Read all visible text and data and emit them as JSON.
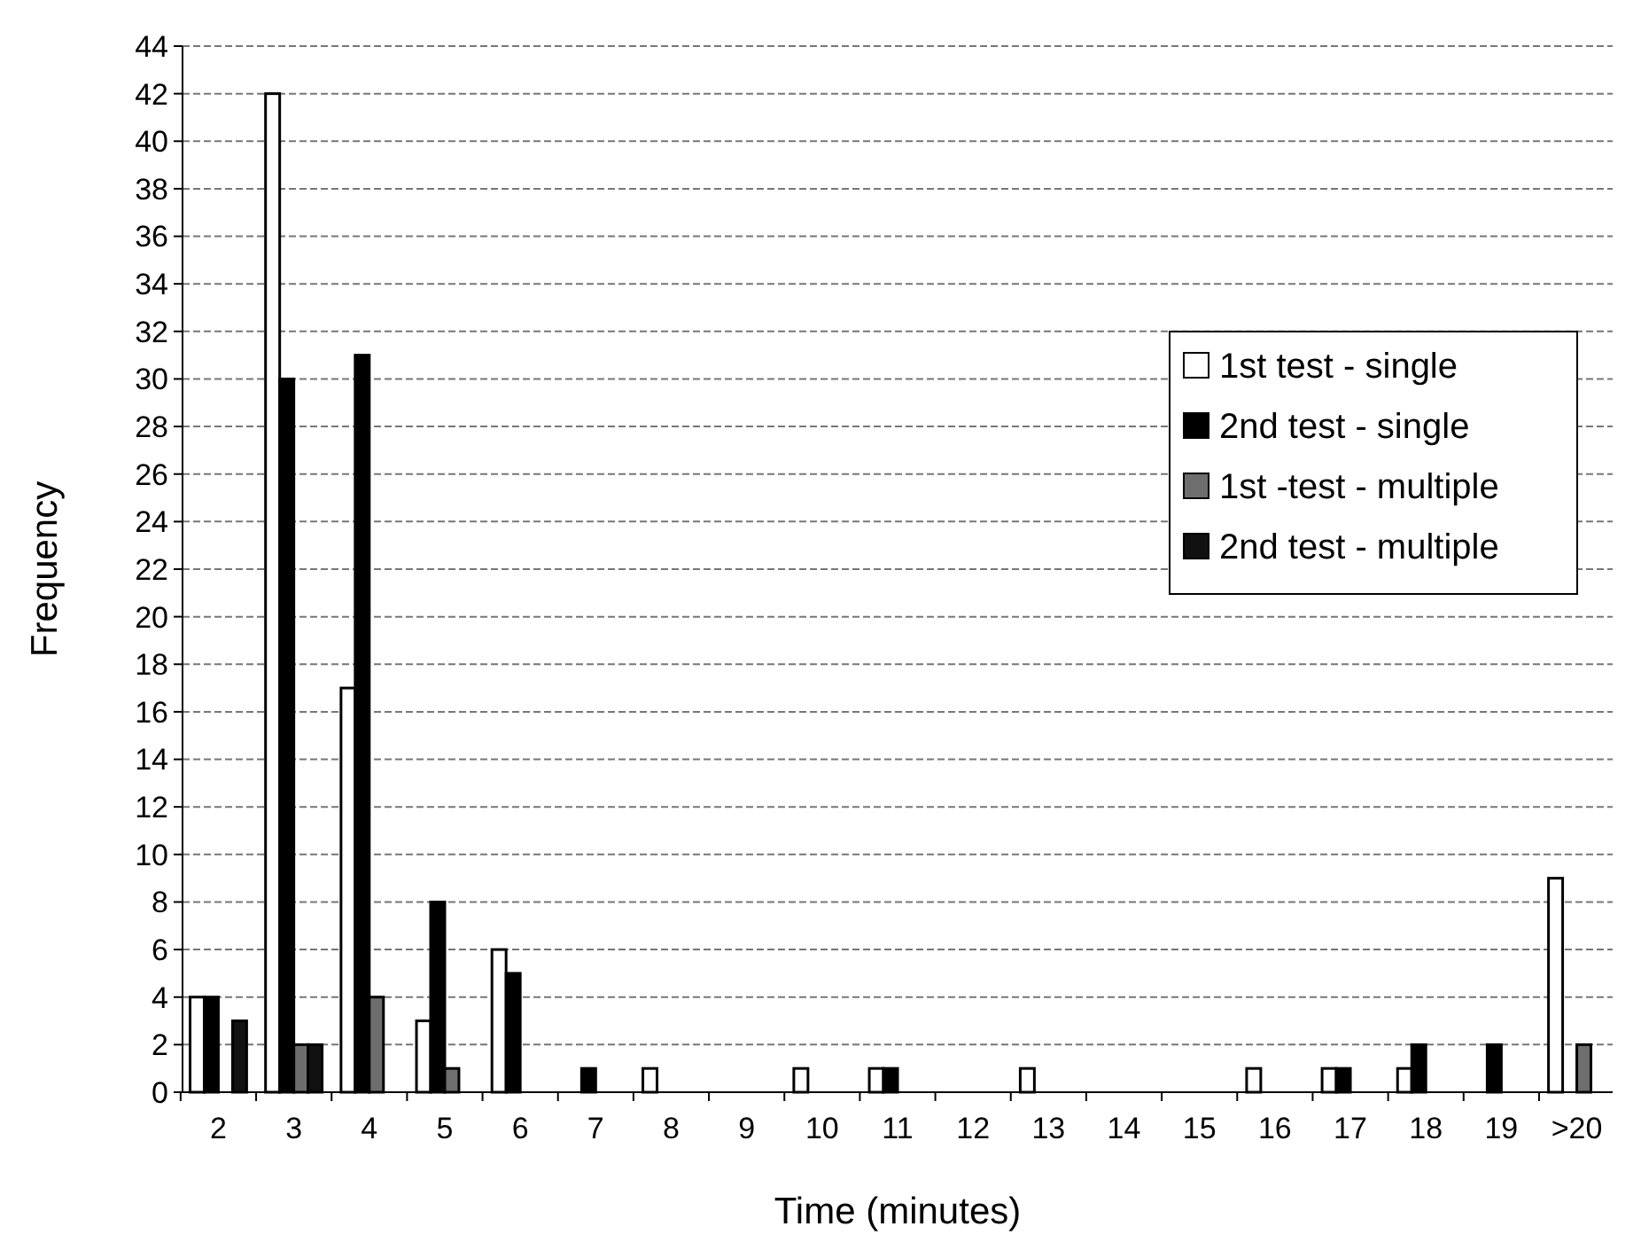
{
  "chart_data": {
    "type": "bar",
    "xlabel": "Time (minutes)",
    "ylabel": "Frequency",
    "categories": [
      "2",
      "3",
      "4",
      "5",
      "6",
      "7",
      "8",
      "9",
      "10",
      "11",
      "12",
      "13",
      "14",
      "15",
      "16",
      "17",
      "18",
      "19",
      ">20"
    ],
    "series": [
      {
        "name": "1st test - single",
        "color": "#ffffff",
        "values": [
          4,
          42,
          17,
          3,
          6,
          0,
          1,
          0,
          1,
          1,
          0,
          1,
          0,
          0,
          1,
          1,
          1,
          0,
          9
        ]
      },
      {
        "name": "2nd test - single",
        "color": "#000000",
        "values": [
          4,
          30,
          31,
          8,
          5,
          1,
          0,
          0,
          0,
          1,
          0,
          0,
          0,
          0,
          0,
          1,
          2,
          2,
          0
        ]
      },
      {
        "name": "1st -test - multiple",
        "color": "#6e6e6e",
        "values": [
          0,
          2,
          4,
          1,
          0,
          0,
          0,
          0,
          0,
          0,
          0,
          0,
          0,
          0,
          0,
          0,
          0,
          0,
          2
        ]
      },
      {
        "name": "2nd test - multiple",
        "color": "#111111",
        "values": [
          3,
          2,
          0,
          0,
          0,
          0,
          0,
          0,
          0,
          0,
          0,
          0,
          0,
          0,
          0,
          0,
          0,
          0,
          0
        ]
      }
    ],
    "ylim": [
      0,
      44
    ],
    "yticks": [
      0,
      2,
      4,
      6,
      8,
      10,
      12,
      14,
      16,
      18,
      20,
      22,
      24,
      26,
      28,
      30,
      32,
      34,
      36,
      38,
      40,
      42,
      44
    ],
    "grid": "y",
    "legend": "right"
  }
}
